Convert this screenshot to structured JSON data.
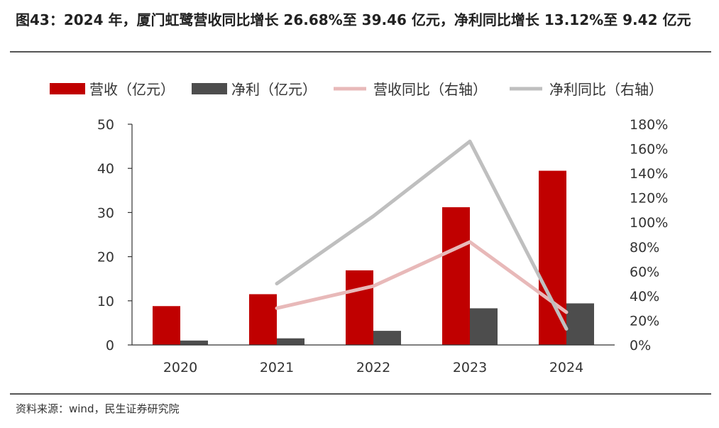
{
  "header": {
    "title": "图43：2024 年，厦门虹鹭营收同比增长 26.68%至 39.46 亿元，净利同比增长 13.12%至 9.42 亿元"
  },
  "footer": {
    "source": "资料来源：wind，民生证券研究院"
  },
  "chart_data": {
    "type": "bar",
    "categories": [
      "2020",
      "2021",
      "2022",
      "2023",
      "2024"
    ],
    "series": [
      {
        "name": "营收（亿元）",
        "type": "bar",
        "axis": "left",
        "color": "#c00000",
        "values": [
          8.8,
          11.5,
          16.9,
          31.2,
          39.46
        ]
      },
      {
        "name": "净利（亿元）",
        "type": "bar",
        "axis": "left",
        "color": "#4d4d4d",
        "values": [
          1.0,
          1.5,
          3.2,
          8.3,
          9.42
        ]
      },
      {
        "name": "营收同比（右轴）",
        "type": "line",
        "axis": "right",
        "color": "#e8b9b9",
        "values": [
          null,
          30,
          48,
          84,
          26.68
        ]
      },
      {
        "name": "净利同比（右轴）",
        "type": "line",
        "axis": "right",
        "color": "#bfbfbf",
        "values": [
          null,
          50,
          105,
          166,
          13.12
        ]
      }
    ],
    "left_axis": {
      "ylim": [
        0,
        50
      ],
      "ticks": [
        "0",
        "10",
        "20",
        "30",
        "40",
        "50"
      ]
    },
    "right_axis": {
      "ylim": [
        0,
        180
      ],
      "ticks": [
        "0%",
        "20%",
        "40%",
        "60%",
        "80%",
        "100%",
        "120%",
        "140%",
        "160%",
        "180%"
      ]
    },
    "legend_position": "top",
    "grid": false
  }
}
